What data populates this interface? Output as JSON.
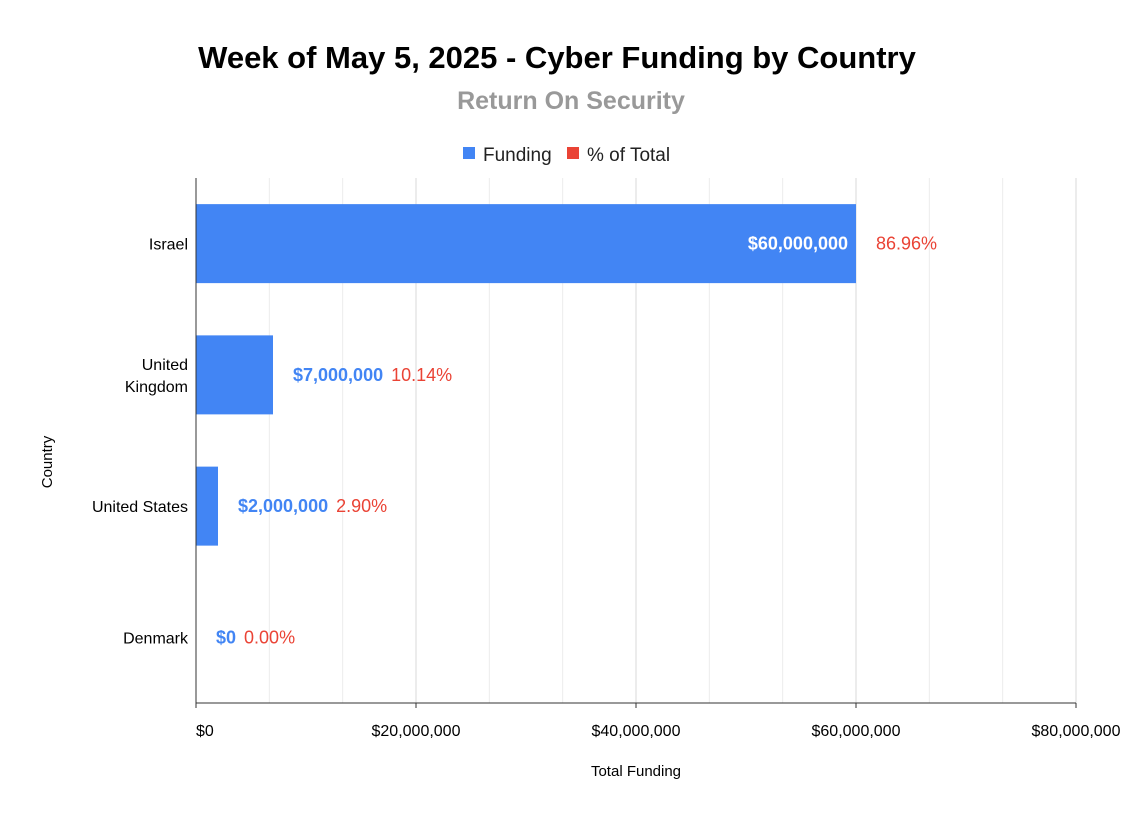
{
  "chart_data": {
    "type": "bar",
    "orientation": "horizontal",
    "title": "Week of May 5, 2025 - Cyber Funding by Country",
    "subtitle": "Return On Security",
    "xlabel": "Total Funding",
    "ylabel": "Country",
    "xlim": [
      0,
      80000000
    ],
    "x_ticks": [
      "$0",
      "$20,000,000",
      "$40,000,000",
      "$60,000,000",
      "$80,000,000"
    ],
    "grid": true,
    "legend_position": "top",
    "legend": [
      {
        "name": "Funding",
        "color": "#4285f4"
      },
      {
        "name": "% of Total",
        "color": "#ea4335"
      }
    ],
    "categories": [
      "Israel",
      "United Kingdom",
      "United States",
      "Denmark"
    ],
    "category_lines": [
      [
        "Israel"
      ],
      [
        "United",
        "Kingdom"
      ],
      [
        "United States"
      ],
      [
        "Denmark"
      ]
    ],
    "series": [
      {
        "name": "Funding",
        "values": [
          60000000,
          7000000,
          2000000,
          0
        ],
        "labels": [
          "$60,000,000",
          "$7,000,000",
          "$2,000,000",
          "$0"
        ],
        "color": "#4285f4"
      }
    ],
    "percent_labels": [
      "86.96%",
      "10.14%",
      "2.90%",
      "0.00%"
    ],
    "percent_color": "#ea4335",
    "inside_label_color": "#ffffff",
    "outside_label_color": "#4285f4"
  }
}
